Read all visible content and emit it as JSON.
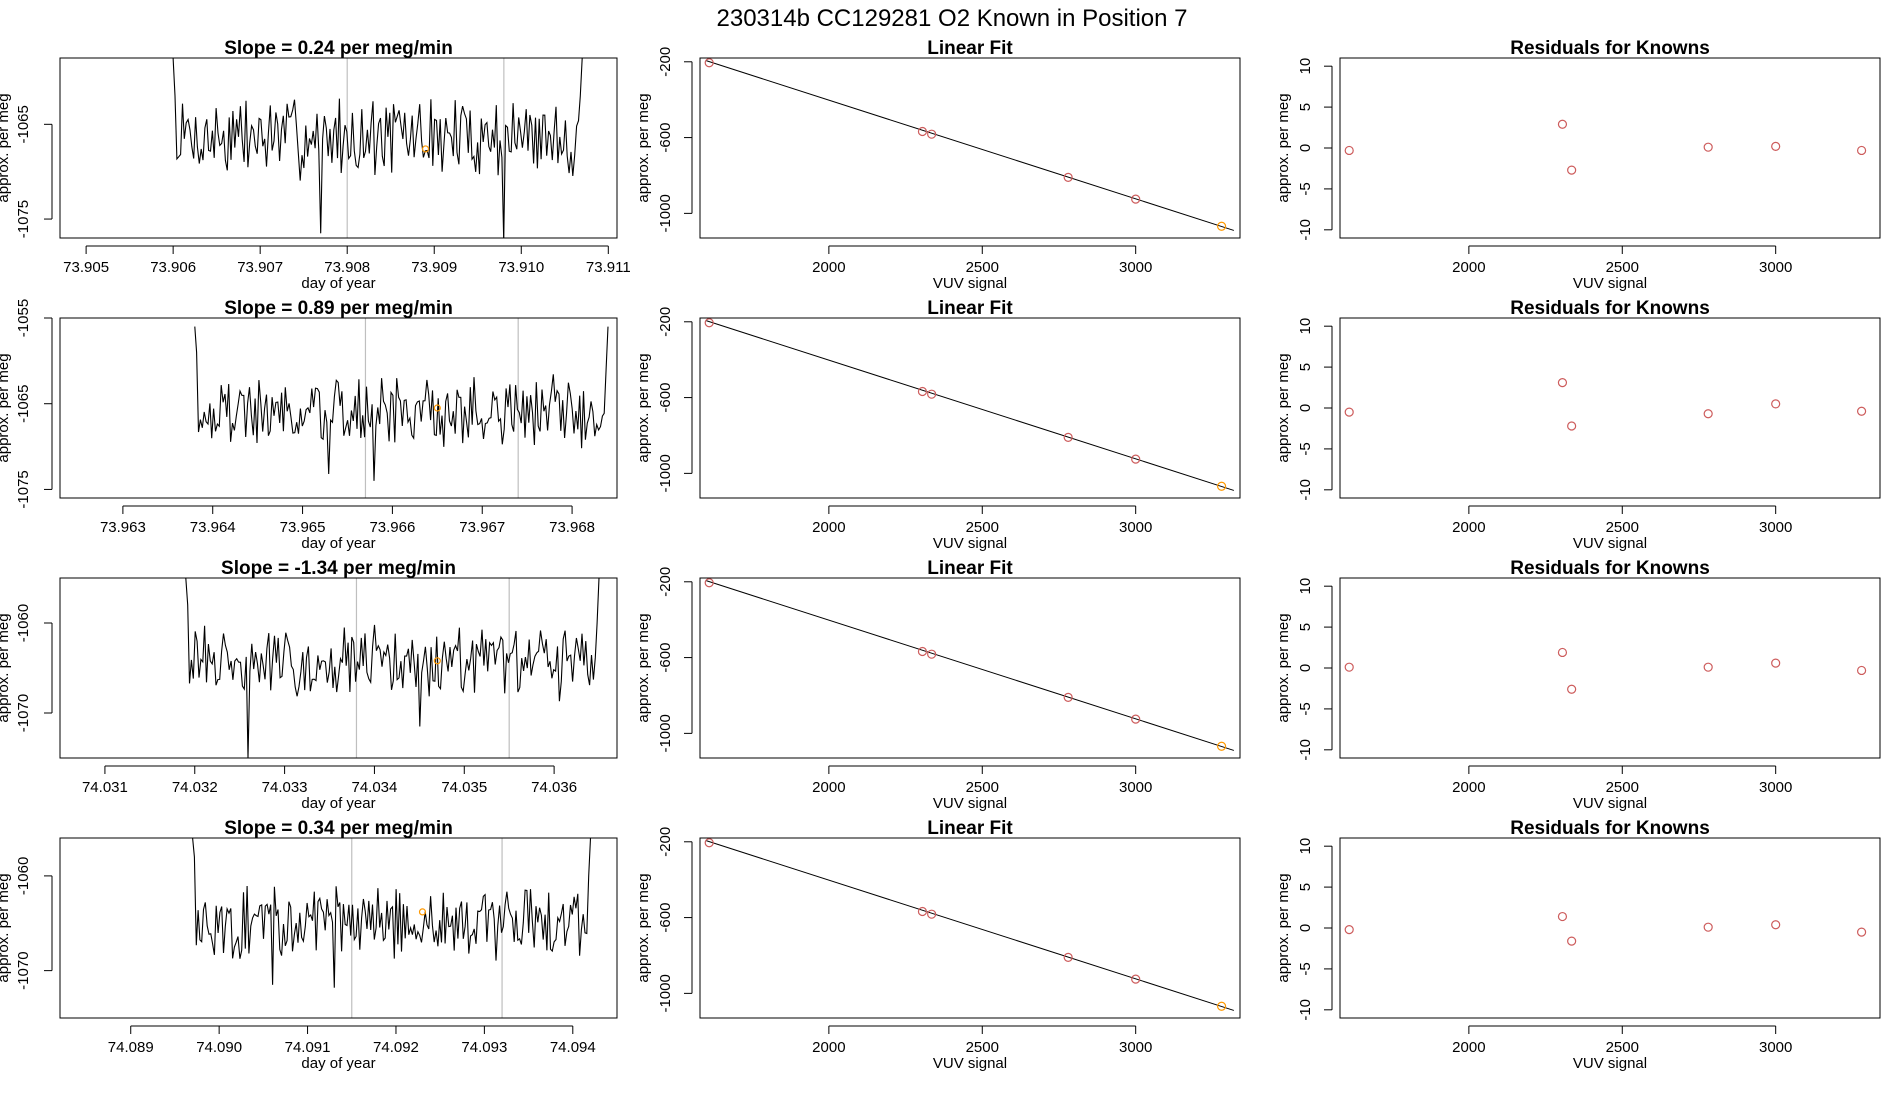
{
  "header": {
    "title": "230314b     CC129281    O2 Known in Position  7"
  },
  "colors": {
    "line": "#000000",
    "frame": "#000000",
    "marker_line": "#bfbfbf",
    "point": "#cd5c5c",
    "highlight_point": "#ff9900",
    "fit_line": "#000000"
  },
  "labels": {
    "time_xlabel": "day of year",
    "time_ylabel": "approx. per meg",
    "fit_title": "Linear Fit",
    "fit_xlabel": "VUV signal",
    "fit_ylabel": "approx. per meg",
    "res_title": "Residuals for Knowns",
    "res_xlabel": "VUV signal",
    "res_ylabel": "approx. per meg"
  },
  "chart_data": [
    {
      "type": "line",
      "title": "Slope =  0.24  per meg/min",
      "xlabel": "day of year",
      "ylabel": "approx. per meg",
      "xlim": [
        73.9047,
        73.9111
      ],
      "ylim": [
        -1077,
        -1058
      ],
      "xticks": [
        "73.905",
        "73.906",
        "73.907",
        "73.908",
        "73.909",
        "73.910",
        "73.911"
      ],
      "yticks": [
        "-1065",
        "-1075"
      ],
      "ytick_values": [
        -1065,
        -1075
      ],
      "marker_lines": [
        73.908,
        73.9098
      ],
      "highlight_point": [
        73.9089,
        -1067.6
      ],
      "series": {
        "x_start": 73.906,
        "x_end": 73.9107,
        "base": -1066.3,
        "noise": 3.6,
        "points": 220,
        "seed": 7,
        "start_values": [
          -1058,
          -1062
        ],
        "end_values": [
          -1062,
          -1058
        ],
        "dips": [
          [
            73.9077,
            -1076.5
          ],
          [
            73.9098,
            -1077.2
          ]
        ]
      }
    },
    {
      "type": "scatter",
      "title": "Linear Fit",
      "xlabel": "VUV signal",
      "ylabel": "approx. per meg",
      "xlim": [
        1580,
        3340
      ],
      "ylim": [
        -1130,
        -180
      ],
      "xticks": [
        2000,
        2500,
        3000
      ],
      "yticks": [
        -200,
        -600,
        -1000
      ],
      "points": [
        [
          1610,
          -205
        ],
        [
          2305,
          -568
        ],
        [
          2335,
          -582
        ],
        [
          2780,
          -810
        ],
        [
          3000,
          -925
        ],
        [
          3280,
          -1068
        ]
      ],
      "highlight_index": 5,
      "fit_line": [
        [
          1600,
          -194
        ],
        [
          3320,
          -1090
        ]
      ]
    },
    {
      "type": "scatter",
      "title": "Residuals for Knowns",
      "xlabel": "VUV signal",
      "ylabel": "approx. per meg",
      "xlim": [
        1580,
        3340
      ],
      "ylim": [
        -11,
        11
      ],
      "xticks": [
        2000,
        2500,
        3000
      ],
      "yticks": [
        10,
        5,
        0,
        -5,
        -10
      ],
      "points": [
        [
          1610,
          -0.3
        ],
        [
          2305,
          2.9
        ],
        [
          2335,
          -2.7
        ],
        [
          2780,
          0.1
        ],
        [
          3000,
          0.2
        ],
        [
          3280,
          -0.3
        ]
      ]
    },
    {
      "type": "line",
      "title": "Slope =  0.89  per meg/min",
      "xlabel": "day of year",
      "ylabel": "approx. per meg",
      "xlim": [
        73.9623,
        73.9685
      ],
      "ylim": [
        -1076,
        -1055
      ],
      "xticks": [
        "73.963",
        "73.964",
        "73.965",
        "73.966",
        "73.967",
        "73.968"
      ],
      "yticks": [
        "-1055",
        "-1065",
        "-1075"
      ],
      "ytick_values": [
        -1055,
        -1065,
        -1075
      ],
      "marker_lines": [
        73.9657,
        73.9674
      ],
      "highlight_point": [
        73.9665,
        -1065.5
      ],
      "series": {
        "x_start": 73.9638,
        "x_end": 73.9684,
        "base": -1066.0,
        "noise": 3.4,
        "points": 220,
        "seed": 19,
        "start_values": [
          -1056,
          -1059
        ],
        "end_values": [
          -1061,
          -1056
        ],
        "dips": [
          [
            73.9653,
            -1073.2
          ],
          [
            73.9658,
            -1074.0
          ]
        ]
      }
    },
    {
      "type": "scatter",
      "title": "Linear Fit",
      "xlabel": "VUV signal",
      "ylabel": "approx. per meg",
      "xlim": [
        1580,
        3340
      ],
      "ylim": [
        -1130,
        -180
      ],
      "xticks": [
        2000,
        2500,
        3000
      ],
      "yticks": [
        -200,
        -600,
        -1000
      ],
      "points": [
        [
          1610,
          -205
        ],
        [
          2305,
          -568
        ],
        [
          2335,
          -582
        ],
        [
          2780,
          -810
        ],
        [
          3000,
          -925
        ],
        [
          3280,
          -1068
        ]
      ],
      "highlight_index": 5,
      "fit_line": [
        [
          1600,
          -194
        ],
        [
          3320,
          -1090
        ]
      ]
    },
    {
      "type": "scatter",
      "title": "Residuals for Knowns",
      "xlabel": "VUV signal",
      "ylabel": "approx. per meg",
      "xlim": [
        1580,
        3340
      ],
      "ylim": [
        -11,
        11
      ],
      "xticks": [
        2000,
        2500,
        3000
      ],
      "yticks": [
        10,
        5,
        0,
        -5,
        -10
      ],
      "points": [
        [
          1610,
          -0.5
        ],
        [
          2305,
          3.1
        ],
        [
          2335,
          -2.2
        ],
        [
          2780,
          -0.7
        ],
        [
          3000,
          0.5
        ],
        [
          3280,
          -0.4
        ]
      ]
    },
    {
      "type": "line",
      "title": "Slope =  -1.34  per meg/min",
      "xlabel": "day of year",
      "ylabel": "approx. per meg",
      "xlim": [
        74.0305,
        74.0367
      ],
      "ylim": [
        -1075,
        -1055
      ],
      "xticks": [
        "74.031",
        "74.032",
        "74.033",
        "74.034",
        "74.035",
        "74.036"
      ],
      "yticks": [
        "-1060",
        "-1070"
      ],
      "ytick_values": [
        -1060,
        -1070
      ],
      "marker_lines": [
        74.0338,
        74.0355
      ],
      "highlight_point": [
        74.0347,
        -1064.2
      ],
      "series": {
        "x_start": 74.0319,
        "x_end": 74.0365,
        "base": -1064.4,
        "noise": 3.3,
        "points": 220,
        "seed": 31,
        "start_values": [
          -1055,
          -1058
        ],
        "end_values": [
          -1060,
          -1055
        ],
        "dips": [
          [
            74.0326,
            -1075.0
          ],
          [
            74.0345,
            -1071.5
          ]
        ]
      }
    },
    {
      "type": "scatter",
      "title": "Linear Fit",
      "xlabel": "VUV signal",
      "ylabel": "approx. per meg",
      "xlim": [
        1580,
        3340
      ],
      "ylim": [
        -1130,
        -180
      ],
      "xticks": [
        2000,
        2500,
        3000
      ],
      "yticks": [
        -200,
        -600,
        -1000
      ],
      "points": [
        [
          1610,
          -205
        ],
        [
          2305,
          -568
        ],
        [
          2335,
          -582
        ],
        [
          2780,
          -810
        ],
        [
          3000,
          -925
        ],
        [
          3280,
          -1068
        ]
      ],
      "highlight_index": 5,
      "fit_line": [
        [
          1600,
          -194
        ],
        [
          3320,
          -1090
        ]
      ]
    },
    {
      "type": "scatter",
      "title": "Residuals for Knowns",
      "xlabel": "VUV signal",
      "ylabel": "approx. per meg",
      "xlim": [
        1580,
        3340
      ],
      "ylim": [
        -11,
        11
      ],
      "xticks": [
        2000,
        2500,
        3000
      ],
      "yticks": [
        10,
        5,
        0,
        -5,
        -10
      ],
      "points": [
        [
          1610,
          0.1
        ],
        [
          2305,
          1.9
        ],
        [
          2335,
          -2.6
        ],
        [
          2780,
          0.1
        ],
        [
          3000,
          0.6
        ],
        [
          3280,
          -0.3
        ]
      ]
    },
    {
      "type": "line",
      "title": "Slope =  0.34  per meg/min",
      "xlabel": "day of year",
      "ylabel": "approx. per meg",
      "xlim": [
        74.0882,
        74.0945
      ],
      "ylim": [
        -1075,
        -1056
      ],
      "xticks": [
        "74.089",
        "74.090",
        "74.091",
        "74.092",
        "74.093",
        "74.094"
      ],
      "yticks": [
        "-1060",
        "-1070"
      ],
      "ytick_values": [
        -1060,
        -1070
      ],
      "marker_lines": [
        74.0915,
        74.0932
      ],
      "highlight_point": [
        74.0923,
        -1063.8
      ],
      "series": {
        "x_start": 74.0897,
        "x_end": 74.0942,
        "base": -1065.0,
        "noise": 3.2,
        "points": 220,
        "seed": 43,
        "start_values": [
          -1056,
          -1058
        ],
        "end_values": [
          -1060,
          -1056
        ],
        "dips": [
          [
            74.0906,
            -1071.5
          ],
          [
            74.0913,
            -1071.8
          ]
        ]
      }
    },
    {
      "type": "scatter",
      "title": "Linear Fit",
      "xlabel": "VUV signal",
      "ylabel": "approx. per meg",
      "xlim": [
        1580,
        3340
      ],
      "ylim": [
        -1130,
        -180
      ],
      "xticks": [
        2000,
        2500,
        3000
      ],
      "yticks": [
        -200,
        -600,
        -1000
      ],
      "points": [
        [
          1610,
          -205
        ],
        [
          2305,
          -568
        ],
        [
          2335,
          -582
        ],
        [
          2780,
          -810
        ],
        [
          3000,
          -925
        ],
        [
          3280,
          -1068
        ]
      ],
      "highlight_index": 5,
      "fit_line": [
        [
          1600,
          -194
        ],
        [
          3320,
          -1090
        ]
      ]
    },
    {
      "type": "scatter",
      "title": "Residuals for Knowns",
      "xlabel": "VUV signal",
      "ylabel": "approx. per meg",
      "xlim": [
        1580,
        3340
      ],
      "ylim": [
        -11,
        11
      ],
      "xticks": [
        2000,
        2500,
        3000
      ],
      "yticks": [
        10,
        5,
        0,
        -5,
        -10
      ],
      "points": [
        [
          1610,
          -0.2
        ],
        [
          2305,
          1.4
        ],
        [
          2335,
          -1.6
        ],
        [
          2780,
          0.1
        ],
        [
          3000,
          0.4
        ],
        [
          3280,
          -0.5
        ]
      ]
    }
  ]
}
